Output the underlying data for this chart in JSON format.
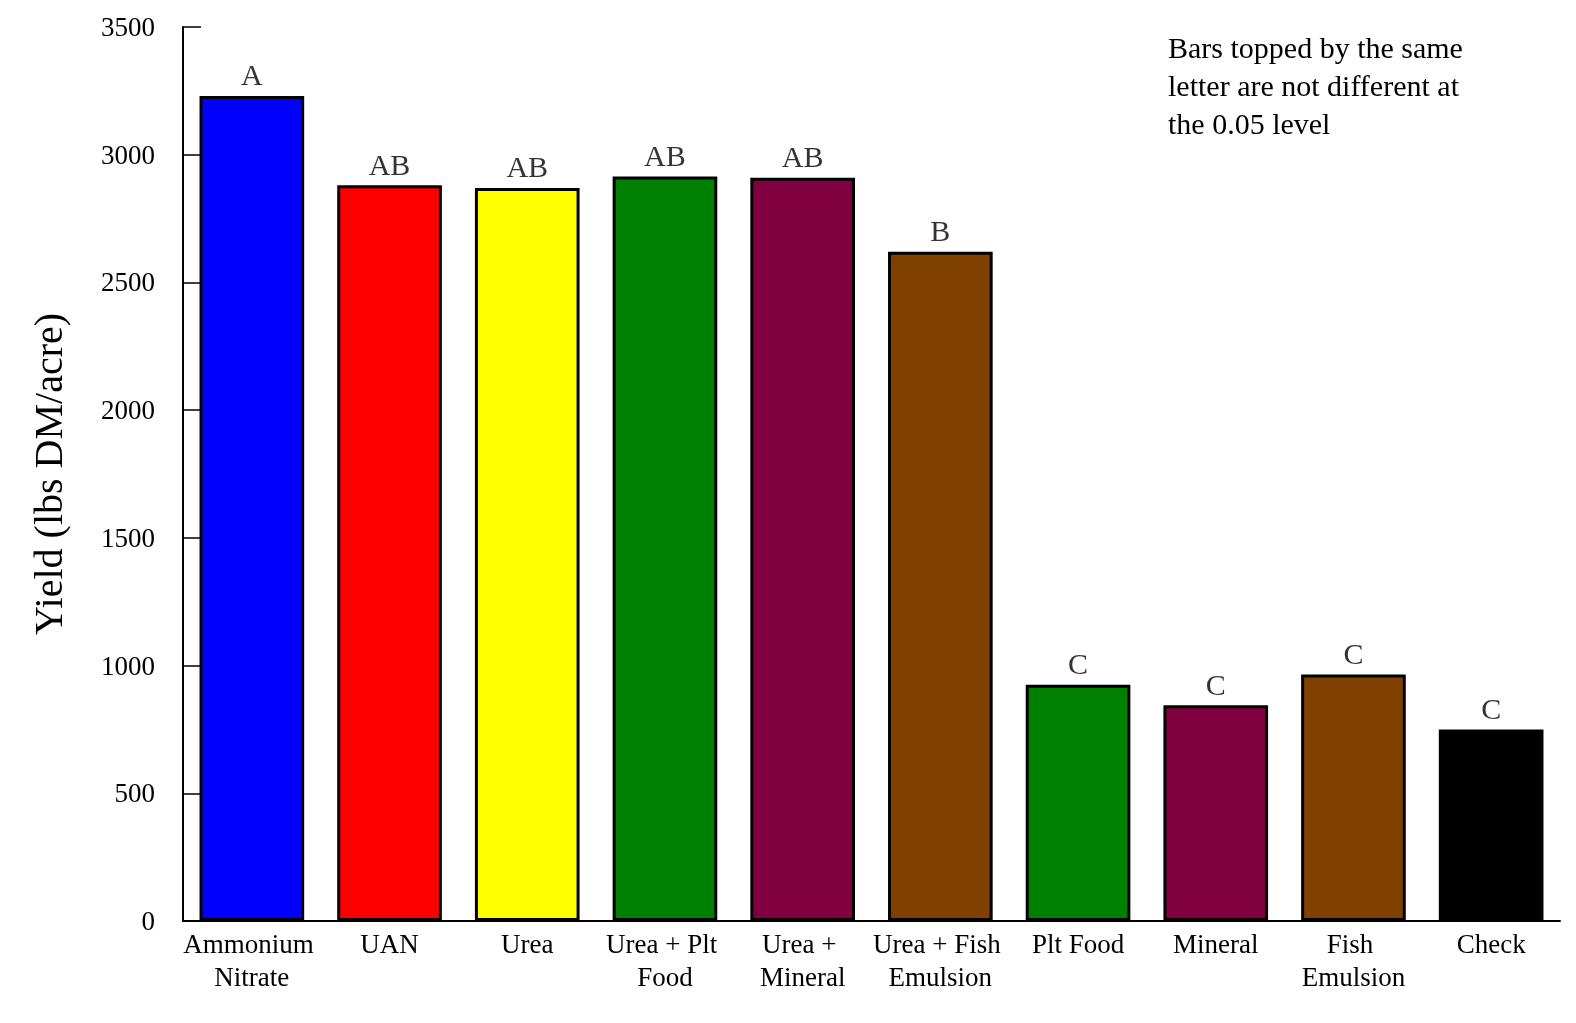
{
  "chart_data": {
    "type": "bar",
    "ylabel": "Yield (lbs DM/acre)",
    "categories": [
      "Ammonium Nitrate",
      "UAN",
      "Urea",
      "Urea + Plt Food",
      "Urea + Mineral",
      "Urea + Fish Emulsion",
      "Plt Food",
      "Mineral",
      "Fish Emulsion",
      "Check"
    ],
    "values": [
      3230,
      2880,
      2870,
      2915,
      2910,
      2620,
      925,
      845,
      965,
      750
    ],
    "colors": [
      "#0000ff",
      "#ff0000",
      "#ffff00",
      "#008000",
      "#800040",
      "#804000",
      "#008000",
      "#800040",
      "#804000",
      "#000000"
    ],
    "ylim": [
      0,
      3500
    ],
    "yticks": [
      0,
      500,
      1000,
      1500,
      2000,
      2500,
      3000,
      3500
    ],
    "annotations": [
      {
        "text": "A",
        "x": "Ammonium Nitrate",
        "y": 3230
      },
      {
        "text": "AB",
        "x": "UAN",
        "y": 2880
      },
      {
        "text": "AB",
        "x": "Urea",
        "y": 2870
      },
      {
        "text": "AB",
        "x": "Urea + Plt Food",
        "y": 2915
      },
      {
        "text": "AB",
        "x": "Urea + Mineral",
        "y": 2910
      },
      {
        "text": "B",
        "x": "Urea + Fish Emulsion",
        "y": 2620
      },
      {
        "text": "C",
        "x": "Plt Food",
        "y": 925
      },
      {
        "text": "C",
        "x": "Mineral",
        "y": 845
      },
      {
        "text": "C",
        "x": "Fish Emulsion",
        "y": 965
      },
      {
        "text": "C",
        "x": "Check",
        "y": 750
      },
      "Bars topped by the same letter are not different at the 0.05 level"
    ],
    "grid": false
  }
}
